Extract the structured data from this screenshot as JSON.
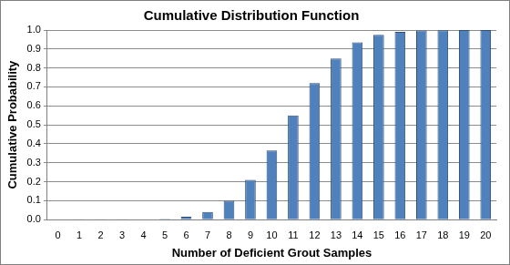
{
  "chart_data": {
    "type": "bar",
    "title": "Cumulative Distribution Function",
    "x_label": "Number of Deficient Grout Samples",
    "y_label": "Cumulative Probability",
    "categories": [
      "0",
      "1",
      "2",
      "3",
      "4",
      "5",
      "6",
      "7",
      "8",
      "9",
      "10",
      "11",
      "12",
      "13",
      "14",
      "15",
      "16",
      "17",
      "18",
      "19",
      "20"
    ],
    "values": [
      0,
      0.0002,
      0.0005,
      0.001,
      0.002,
      0.005,
      0.015,
      0.04,
      0.1,
      0.21,
      0.365,
      0.55,
      0.72,
      0.85,
      0.935,
      0.975,
      0.99,
      0.997,
      0.999,
      1.0,
      1.0
    ],
    "color": "#4f81bd",
    "ylim": [
      0,
      1
    ],
    "yticks": [
      {
        "value": 0,
        "label": "0.0"
      },
      0.1,
      0.2,
      0.3,
      0.4,
      0.5,
      0.6,
      0.7,
      0.8,
      0.9,
      {
        "value": 1,
        "label": "1.0"
      }
    ],
    "grid": true
  }
}
